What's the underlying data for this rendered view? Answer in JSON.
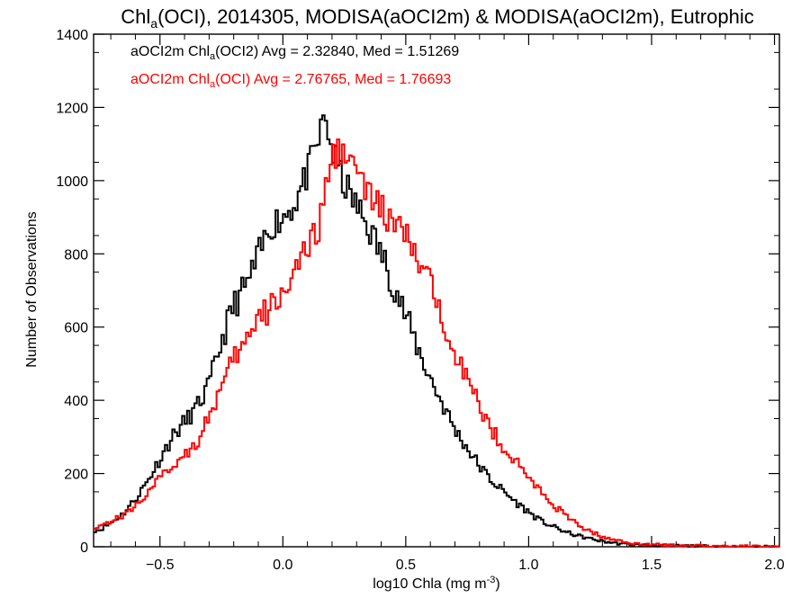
{
  "chart_data": {
    "type": "line",
    "title": "Chl",
    "title_sub": "a",
    "title_rest": "(OCI), 2014305, MODISA(aOCI2m) & MODISA(aOCI2m), Eutrophic",
    "xlabel": "log10 Chla (mg m",
    "xlabel_sup": "-3",
    "xlabel_end": ")",
    "ylabel": "Number of Observations",
    "xlim": [
      -0.77,
      2.02
    ],
    "ylim": [
      0,
      1400
    ],
    "xticks": [
      -0.5,
      0.0,
      0.5,
      1.0,
      1.5,
      2.0
    ],
    "xtick_labels": [
      "−0.5",
      "0.0",
      "0.5",
      "1.0",
      "1.5",
      "2.0"
    ],
    "yticks": [
      0,
      200,
      400,
      600,
      800,
      1000,
      1200,
      1400
    ],
    "ytick_labels": [
      "0",
      "200",
      "400",
      "600",
      "800",
      "1000",
      "1200",
      "1400"
    ],
    "legend": [
      {
        "prefix": "aOCI2m Chl",
        "sub": "a",
        "suffix": "(OCI2) Avg = 2.32840, Med = 1.51269",
        "color": "#000000"
      },
      {
        "prefix": "aOCI2m Chl",
        "sub": "a",
        "suffix": "(OCI) Avg = 2.76765, Med = 1.76693",
        "color": "#ff0000"
      }
    ],
    "x": [
      -0.75,
      -0.7,
      -0.65,
      -0.6,
      -0.55,
      -0.5,
      -0.45,
      -0.4,
      -0.35,
      -0.3,
      -0.25,
      -0.2,
      -0.15,
      -0.1,
      -0.05,
      0.0,
      0.05,
      0.1,
      0.15,
      0.17,
      0.2,
      0.25,
      0.3,
      0.35,
      0.4,
      0.45,
      0.5,
      0.55,
      0.6,
      0.65,
      0.7,
      0.75,
      0.8,
      0.85,
      0.9,
      0.95,
      1.0,
      1.05,
      1.1,
      1.15,
      1.2,
      1.25,
      1.3,
      1.35,
      1.4,
      1.45,
      1.5,
      1.6,
      1.7,
      1.8,
      1.9,
      2.0
    ],
    "series": [
      {
        "name": "aOCI2m Chla (OCI2)",
        "color": "#000000",
        "values": [
          45,
          65,
          90,
          130,
          180,
          240,
          300,
          340,
          380,
          440,
          560,
          660,
          710,
          790,
          880,
          900,
          940,
          1020,
          1120,
          1180,
          1080,
          990,
          930,
          870,
          800,
          720,
          630,
          540,
          460,
          390,
          320,
          270,
          220,
          180,
          150,
          120,
          95,
          70,
          55,
          40,
          30,
          22,
          15,
          10,
          7,
          5,
          4,
          3,
          2,
          1,
          1,
          0
        ]
      },
      {
        "name": "aOCI2m Chla (OCI)",
        "color": "#ff0000",
        "values": [
          55,
          70,
          85,
          110,
          150,
          185,
          220,
          255,
          285,
          360,
          430,
          510,
          560,
          620,
          650,
          700,
          760,
          800,
          880,
          960,
          1060,
          1100,
          1020,
          960,
          920,
          880,
          850,
          780,
          710,
          630,
          540,
          460,
          380,
          320,
          270,
          230,
          190,
          150,
          115,
          85,
          60,
          42,
          28,
          18,
          12,
          8,
          6,
          4,
          3,
          2,
          1,
          0
        ]
      }
    ]
  }
}
